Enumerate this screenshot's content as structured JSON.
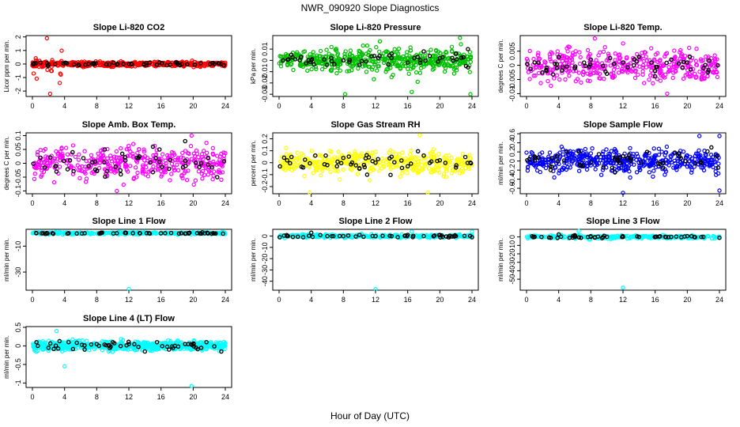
{
  "figure": {
    "title": "NWR_090920  Slope Diagnostics",
    "xlabel": "Hour of Day (UTC)"
  },
  "chart_data": [
    {
      "type": "scatter",
      "title": "Slope Li-820 CO2",
      "ylabel": "Licor ppm per min.",
      "color": "#ff0000",
      "xlim": [
        0,
        24
      ],
      "xticks": [
        0,
        4,
        8,
        12,
        16,
        20,
        24
      ],
      "ylim": [
        -2.4,
        2.1
      ],
      "yticks": [
        -2,
        -1,
        0,
        1,
        2
      ],
      "n_points": 500,
      "spread": 0.12,
      "burst": {
        "x_range": [
          0,
          4
        ],
        "spread": 0.8
      },
      "outliers": [
        {
          "x": 2.2,
          "y": -2.2
        },
        {
          "x": 1.8,
          "y": 1.9
        },
        {
          "x": 3.4,
          "y": -1.4
        }
      ],
      "fixed_points": [
        [
          0.2,
          0.05
        ],
        [
          1.0,
          0.1
        ],
        [
          2.0,
          -0.05
        ],
        [
          4.1,
          0.1
        ],
        [
          5.8,
          -0.1
        ],
        [
          7.9,
          0.05
        ],
        [
          10.1,
          0.1
        ],
        [
          12.0,
          0.0
        ],
        [
          14.2,
          -0.1
        ],
        [
          16.1,
          0.05
        ],
        [
          18.0,
          0.1
        ],
        [
          20.2,
          -0.05
        ],
        [
          22.1,
          0.0
        ],
        [
          23.8,
          -0.1
        ]
      ]
    },
    {
      "type": "scatter",
      "title": "Slope Li-820 Pressure",
      "ylabel": "kPa per min.",
      "color": "#00c000",
      "xlim": [
        0,
        24
      ],
      "xticks": [
        0,
        4,
        8,
        12,
        16,
        20,
        24
      ],
      "ylim": [
        -0.032,
        0.022
      ],
      "yticks": [
        -0.03,
        -0.02,
        -0.01,
        0.0,
        0.01
      ],
      "n_points": 500,
      "spread": 0.006,
      "burst": {
        "x_range": [
          8,
          24
        ],
        "spread": 0.011
      },
      "outliers": [
        {
          "x": 8.2,
          "y": -0.03
        },
        {
          "x": 16.5,
          "y": -0.028
        },
        {
          "x": 23.8,
          "y": -0.03
        },
        {
          "x": 22.5,
          "y": 0.02
        }
      ],
      "fixed_points": [
        [
          0.5,
          0.0
        ],
        [
          2.0,
          0.001
        ],
        [
          4.0,
          0.0
        ],
        [
          6.5,
          0.002
        ],
        [
          8.0,
          0.0
        ],
        [
          10.0,
          -0.004
        ],
        [
          12.5,
          0.004
        ],
        [
          14.0,
          0.006
        ],
        [
          16.0,
          -0.002
        ],
        [
          18.0,
          0.008
        ],
        [
          20.0,
          0.002
        ],
        [
          22.0,
          0.006
        ],
        [
          23.5,
          0.01
        ]
      ]
    },
    {
      "type": "scatter",
      "title": "Slope Li-820 Temp.",
      "ylabel": "degrees C per min.",
      "color": "#ff00ff",
      "xlim": [
        0,
        24
      ],
      "xticks": [
        0,
        4,
        8,
        12,
        16,
        20,
        24
      ],
      "ylim": [
        -0.011,
        0.0105
      ],
      "yticks": [
        -0.01,
        -0.005,
        0.0,
        0.005
      ],
      "n_points": 400,
      "spread": 0.004,
      "burst": null,
      "outliers": [
        {
          "x": 8.5,
          "y": 0.0095
        },
        {
          "x": 17.5,
          "y": -0.01
        }
      ],
      "fixed_points": [
        [
          1.0,
          0.001
        ],
        [
          2.5,
          -0.002
        ],
        [
          4.0,
          0.003
        ],
        [
          6.0,
          -0.001
        ],
        [
          8.0,
          0.002
        ],
        [
          10.0,
          -0.003
        ],
        [
          12.0,
          0.001
        ],
        [
          14.0,
          0.003
        ],
        [
          16.0,
          -0.002
        ],
        [
          18.0,
          0.002
        ],
        [
          20.0,
          0.001
        ],
        [
          22.0,
          -0.001
        ],
        [
          23.8,
          0.0
        ]
      ]
    },
    {
      "type": "scatter",
      "title": "Slope Amb. Box Temp.",
      "ylabel": "degrees C per min.",
      "color": "#ff00ff",
      "xlim": [
        0,
        24
      ],
      "xticks": [
        0,
        4,
        8,
        12,
        16,
        20,
        24
      ],
      "ylim": [
        -0.11,
        0.11
      ],
      "yticks": [
        -0.1,
        -0.05,
        0.0,
        0.05,
        0.1
      ],
      "n_points": 400,
      "spread": 0.04,
      "burst": null,
      "outliers": [
        {
          "x": 19.8,
          "y": 0.1
        },
        {
          "x": 10.5,
          "y": -0.1
        }
      ],
      "fixed_points": [
        [
          1.0,
          0.02
        ],
        [
          3.0,
          -0.03
        ],
        [
          5.0,
          0.04
        ],
        [
          7.0,
          -0.01
        ],
        [
          9.0,
          0.05
        ],
        [
          11.0,
          -0.04
        ],
        [
          13.0,
          0.02
        ],
        [
          15.0,
          0.06
        ],
        [
          17.0,
          -0.02
        ],
        [
          19.0,
          0.08
        ],
        [
          21.0,
          0.0
        ],
        [
          23.0,
          -0.05
        ]
      ]
    },
    {
      "type": "scatter",
      "title": "Slope Gas Stream RH",
      "ylabel": "percent per min.",
      "color": "#ffff00",
      "xlim": [
        0,
        24
      ],
      "xticks": [
        0,
        4,
        8,
        12,
        16,
        20,
        24
      ],
      "ylim": [
        -0.26,
        0.25
      ],
      "yticks": [
        -0.2,
        -0.1,
        0.0,
        0.1,
        0.2
      ],
      "n_points": 400,
      "spread": 0.07,
      "burst": null,
      "outliers": [
        {
          "x": 3.8,
          "y": -0.25
        },
        {
          "x": 18.5,
          "y": -0.25
        },
        {
          "x": 17.5,
          "y": 0.23
        }
      ],
      "fixed_points": [
        [
          1.0,
          0.02
        ],
        [
          3.0,
          -0.04
        ],
        [
          4.5,
          0.06
        ],
        [
          6.0,
          -0.02
        ],
        [
          8.0,
          0.04
        ],
        [
          10.0,
          -0.05
        ],
        [
          12.0,
          0.0
        ],
        [
          14.0,
          0.05
        ],
        [
          16.0,
          -0.03
        ],
        [
          18.0,
          0.06
        ],
        [
          20.0,
          0.02
        ],
        [
          22.0,
          -0.04
        ],
        [
          23.8,
          0.0
        ]
      ]
    },
    {
      "type": "scatter",
      "title": "Slope Sample Flow",
      "ylabel": "ml/min per min.",
      "color": "#0000ff",
      "xlim": [
        0,
        24
      ],
      "xticks": [
        0,
        4,
        8,
        12,
        16,
        20,
        24
      ],
      "ylim": [
        -0.72,
        0.62
      ],
      "yticks": [
        -0.6,
        -0.4,
        -0.2,
        0.0,
        0.2,
        0.4,
        0.6
      ],
      "n_points": 450,
      "spread": 0.18,
      "burst": null,
      "outliers": [
        {
          "x": 12.0,
          "y": -0.7
        },
        {
          "x": 24.0,
          "y": -0.65
        },
        {
          "x": 24.0,
          "y": 0.55
        },
        {
          "x": 21.5,
          "y": 0.55
        }
      ],
      "fixed_points": [
        [
          1.0,
          0.1
        ],
        [
          3.0,
          -0.2
        ],
        [
          5.0,
          0.2
        ],
        [
          7.0,
          -0.1
        ],
        [
          9.0,
          0.15
        ],
        [
          11.0,
          -0.25
        ],
        [
          13.0,
          0.05
        ],
        [
          15.0,
          0.2
        ],
        [
          17.0,
          -0.15
        ],
        [
          19.0,
          0.1
        ],
        [
          21.0,
          -0.05
        ],
        [
          23.0,
          0.3
        ]
      ]
    },
    {
      "type": "scatter",
      "title": "Slope Line 1 Flow",
      "ylabel": "ml/min per min.",
      "color": "#00ffff",
      "xlim": [
        0,
        24
      ],
      "xticks": [
        0,
        4,
        8,
        12,
        16,
        20,
        24
      ],
      "ylim": [
        -44,
        3
      ],
      "yticks": [
        -30,
        -10
      ],
      "n_points": 350,
      "spread": 0.6,
      "burst": null,
      "outliers": [
        {
          "x": 12.0,
          "y": -43
        }
      ],
      "fixed_points": [
        [
          0.5,
          0.0
        ],
        [
          2.5,
          0.0
        ],
        [
          4.5,
          0.0
        ],
        [
          6.5,
          0.0
        ],
        [
          8.5,
          0.0
        ],
        [
          10.5,
          0.0
        ],
        [
          12.5,
          0.0
        ],
        [
          14.5,
          0.0
        ],
        [
          16.5,
          0.0
        ],
        [
          18.5,
          0.0
        ],
        [
          20.5,
          0.0
        ],
        [
          22.5,
          0.0
        ]
      ]
    },
    {
      "type": "scatter",
      "title": "Slope Line 2 Flow",
      "ylabel": "ml/min per min.",
      "color": "#00ffff",
      "xlim": [
        0,
        24
      ],
      "xticks": [
        0,
        4,
        8,
        12,
        16,
        20,
        24
      ],
      "ylim": [
        -48,
        6
      ],
      "yticks": [
        -40,
        -30,
        -20,
        -10,
        0
      ],
      "n_points": 300,
      "spread": 1.0,
      "burst": null,
      "outliers": [
        {
          "x": 12.0,
          "y": -47
        },
        {
          "x": 16.5,
          "y": 4
        },
        {
          "x": 24.0,
          "y": 4
        }
      ],
      "fixed_points": [
        [
          1.0,
          0.0
        ],
        [
          3.0,
          -1.0
        ],
        [
          4.0,
          3.0
        ],
        [
          6.0,
          0.0
        ],
        [
          8.0,
          0.0
        ],
        [
          10.0,
          1.0
        ],
        [
          12.0,
          0.0
        ],
        [
          14.0,
          0.0
        ],
        [
          16.0,
          1.0
        ],
        [
          18.0,
          0.0
        ],
        [
          20.0,
          1.0
        ],
        [
          22.0,
          0.0
        ],
        [
          24.0,
          -1.0
        ]
      ]
    },
    {
      "type": "scatter",
      "title": "Slope Line 3 Flow",
      "ylabel": "ml/min per min.",
      "color": "#00ffff",
      "xlim": [
        0,
        24
      ],
      "xticks": [
        0,
        4,
        8,
        12,
        16,
        20,
        24
      ],
      "ylim": [
        -63,
        9
      ],
      "yticks": [
        -50,
        -40,
        -30,
        -20,
        -10,
        0
      ],
      "n_points": 300,
      "spread": 1.2,
      "burst": {
        "x_range": [
          4,
          8
        ],
        "spread": 3.0
      },
      "outliers": [
        {
          "x": 12.0,
          "y": -60
        },
        {
          "x": 6.5,
          "y": 7
        }
      ],
      "fixed_points": [
        [
          1.0,
          0.0
        ],
        [
          3.0,
          -1.0
        ],
        [
          4.0,
          3.0
        ],
        [
          6.0,
          2.0
        ],
        [
          8.0,
          0.0
        ],
        [
          10.0,
          0.0
        ],
        [
          12.0,
          0.0
        ],
        [
          14.0,
          0.0
        ],
        [
          16.0,
          0.0
        ],
        [
          18.0,
          0.0
        ],
        [
          20.0,
          1.0
        ],
        [
          22.0,
          0.0
        ],
        [
          24.0,
          -1.0
        ]
      ]
    },
    {
      "type": "scatter",
      "title": "Slope Line 4 (LT) Flow",
      "ylabel": "ml/min per min.",
      "color": "#00ffff",
      "xlim": [
        0,
        24
      ],
      "xticks": [
        0,
        4,
        8,
        12,
        16,
        20,
        24
      ],
      "ylim": [
        -1.12,
        0.52
      ],
      "yticks": [
        -1.0,
        -0.5,
        0.0,
        0.5
      ],
      "n_points": 600,
      "spread": 0.09,
      "burst": null,
      "outliers": [
        {
          "x": 19.8,
          "y": -1.08
        },
        {
          "x": 4.0,
          "y": -0.55
        },
        {
          "x": 3.0,
          "y": 0.4
        }
      ],
      "fixed_points": [
        [
          0.5,
          0.1
        ],
        [
          2.0,
          -0.05
        ],
        [
          4.5,
          0.1
        ],
        [
          6.5,
          -0.1
        ],
        [
          8.0,
          0.05
        ],
        [
          10.0,
          0.1
        ],
        [
          12.0,
          0.05
        ],
        [
          14.0,
          -0.15
        ],
        [
          15.5,
          0.1
        ],
        [
          17.0,
          -0.1
        ],
        [
          19.0,
          0.05
        ],
        [
          21.0,
          -0.05
        ],
        [
          23.5,
          -0.15
        ]
      ]
    }
  ]
}
